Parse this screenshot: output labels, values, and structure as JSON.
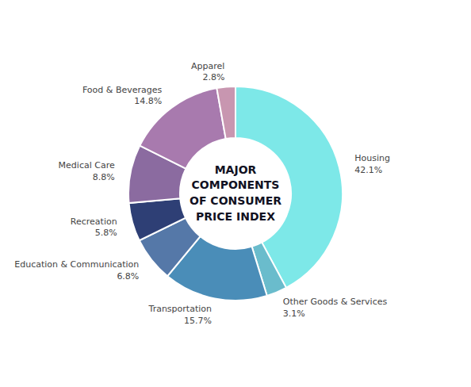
{
  "chart_data": {
    "type": "pie",
    "title": "MAJOR\nCOMPONENTS\nOF CONSUMER\nPRICE INDEX",
    "categories": [
      "Housing",
      "Other Goods & Services",
      "Transportation",
      "Education & Communication",
      "Recreation",
      "Medical Care",
      "Food & Beverages",
      "Apparel"
    ],
    "values": [
      42.1,
      3.1,
      15.7,
      6.8,
      5.8,
      8.8,
      14.8,
      2.8
    ],
    "value_labels": [
      "42.1%",
      "3.1%",
      "15.7%",
      "6.8%",
      "5.8%",
      "8.8%",
      "14.8%",
      "2.8%"
    ],
    "colors": [
      "#7DE8E8",
      "#6ABCCC",
      "#4A8DB8",
      "#5578A8",
      "#2E3F75",
      "#8B6BA0",
      "#A87AAE",
      "#C896B0"
    ],
    "data_labels": true
  }
}
